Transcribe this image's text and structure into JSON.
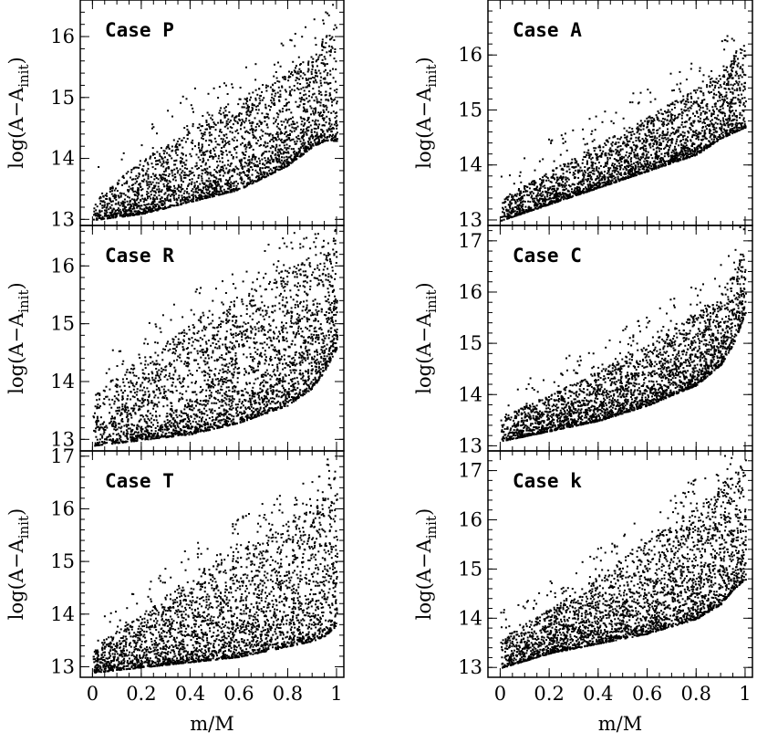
{
  "chart_data": [
    {
      "type": "scatter",
      "label": "Case P",
      "xlabel": "m/M",
      "ylabel": "log(A−A",
      "ylabel_sub": "init",
      "ylabel_close": ")",
      "xlim": [
        -0.05,
        1.03
      ],
      "ylim": [
        12.9,
        16.6
      ],
      "xticks": [
        "0",
        "0.2",
        "0.4",
        "0.6",
        "0.8",
        "1"
      ],
      "yticks": [
        "13",
        "14",
        "15",
        "16"
      ],
      "envelope": {
        "x": [
          0,
          0.2,
          0.4,
          0.6,
          0.8,
          0.9,
          0.95,
          1.0
        ],
        "lower": [
          13.0,
          13.1,
          13.3,
          13.5,
          13.9,
          14.2,
          14.3,
          14.3
        ],
        "upper": [
          13.3,
          14.0,
          14.6,
          15.0,
          15.5,
          15.7,
          16.0,
          16.3
        ]
      },
      "n_points": 2600,
      "seed": 11
    },
    {
      "type": "scatter",
      "label": "Case A",
      "xlabel": "m/M",
      "ylabel": "log(A−A",
      "ylabel_sub": "init",
      "ylabel_close": ")",
      "xlim": [
        -0.05,
        1.03
      ],
      "ylim": [
        12.9,
        17.0
      ],
      "xticks": [
        "0",
        "0.2",
        "0.4",
        "0.6",
        "0.8",
        "1"
      ],
      "yticks": [
        "13",
        "14",
        "15",
        "16"
      ],
      "envelope": {
        "x": [
          0,
          0.2,
          0.4,
          0.6,
          0.8,
          0.9,
          0.95,
          1.0
        ],
        "lower": [
          13.0,
          13.3,
          13.6,
          13.9,
          14.2,
          14.5,
          14.6,
          14.7
        ],
        "upper": [
          13.4,
          13.9,
          14.4,
          14.9,
          15.4,
          15.7,
          16.0,
          16.4
        ]
      },
      "n_points": 2600,
      "seed": 23
    },
    {
      "type": "scatter",
      "label": "Case R",
      "xlabel": "m/M",
      "ylabel": "log(A−A",
      "ylabel_sub": "init",
      "ylabel_close": ")",
      "xlim": [
        -0.05,
        1.03
      ],
      "ylim": [
        12.8,
        16.7
      ],
      "xticks": [
        "0",
        "0.2",
        "0.4",
        "0.6",
        "0.8",
        "1"
      ],
      "yticks": [
        "13",
        "14",
        "15",
        "16"
      ],
      "envelope": {
        "x": [
          0,
          0.2,
          0.4,
          0.6,
          0.8,
          0.9,
          0.95,
          1.0
        ],
        "lower": [
          12.9,
          13.0,
          13.1,
          13.3,
          13.6,
          13.9,
          14.2,
          14.6
        ],
        "upper": [
          13.8,
          14.4,
          15.0,
          15.5,
          16.0,
          16.2,
          16.4,
          16.6
        ]
      },
      "n_points": 3000,
      "seed": 37
    },
    {
      "type": "scatter",
      "label": "Case C",
      "xlabel": "m/M",
      "ylabel": "log(A−A",
      "ylabel_sub": "init",
      "ylabel_close": ")",
      "xlim": [
        -0.05,
        1.03
      ],
      "ylim": [
        12.9,
        17.3
      ],
      "xticks": [
        "0",
        "0.2",
        "0.4",
        "0.6",
        "0.8",
        "1"
      ],
      "yticks": [
        "13",
        "14",
        "15",
        "16",
        "17"
      ],
      "envelope": {
        "x": [
          0,
          0.2,
          0.4,
          0.6,
          0.8,
          0.9,
          0.95,
          1.0
        ],
        "lower": [
          13.1,
          13.3,
          13.5,
          13.8,
          14.2,
          14.6,
          15.0,
          15.6
        ],
        "upper": [
          13.6,
          14.0,
          14.5,
          15.0,
          15.6,
          16.0,
          16.4,
          17.1
        ]
      },
      "n_points": 2800,
      "seed": 41
    },
    {
      "type": "scatter",
      "label": "Case T",
      "xlabel": "m/M",
      "ylabel": "log(A−A",
      "ylabel_sub": "init",
      "ylabel_close": ")",
      "xlim": [
        -0.05,
        1.03
      ],
      "ylim": [
        12.8,
        17.1
      ],
      "xticks": [
        "0",
        "0.2",
        "0.4",
        "0.6",
        "0.8",
        "1"
      ],
      "yticks": [
        "13",
        "14",
        "15",
        "16",
        "17"
      ],
      "envelope": {
        "x": [
          0,
          0.2,
          0.4,
          0.6,
          0.8,
          0.9,
          0.95,
          1.0
        ],
        "lower": [
          12.9,
          13.0,
          13.1,
          13.2,
          13.4,
          13.5,
          13.6,
          13.8
        ],
        "upper": [
          13.4,
          14.0,
          14.7,
          15.3,
          15.8,
          16.1,
          16.4,
          16.8
        ]
      },
      "n_points": 2900,
      "seed": 53
    },
    {
      "type": "scatter",
      "label": "Case k",
      "xlabel": "m/M",
      "ylabel": "log(A−A",
      "ylabel_sub": "init",
      "ylabel_close": ")",
      "xlim": [
        -0.05,
        1.03
      ],
      "ylim": [
        12.8,
        17.4
      ],
      "xticks": [
        "0",
        "0.2",
        "0.4",
        "0.6",
        "0.8",
        "1"
      ],
      "yticks": [
        "13",
        "14",
        "15",
        "16",
        "17"
      ],
      "envelope": {
        "x": [
          0,
          0.2,
          0.4,
          0.6,
          0.8,
          0.9,
          0.95,
          1.0
        ],
        "lower": [
          13.0,
          13.3,
          13.5,
          13.7,
          14.0,
          14.3,
          14.6,
          14.8
        ],
        "upper": [
          13.6,
          14.2,
          14.9,
          15.6,
          16.3,
          16.7,
          17.0,
          17.2
        ]
      },
      "n_points": 3000,
      "seed": 67
    }
  ]
}
